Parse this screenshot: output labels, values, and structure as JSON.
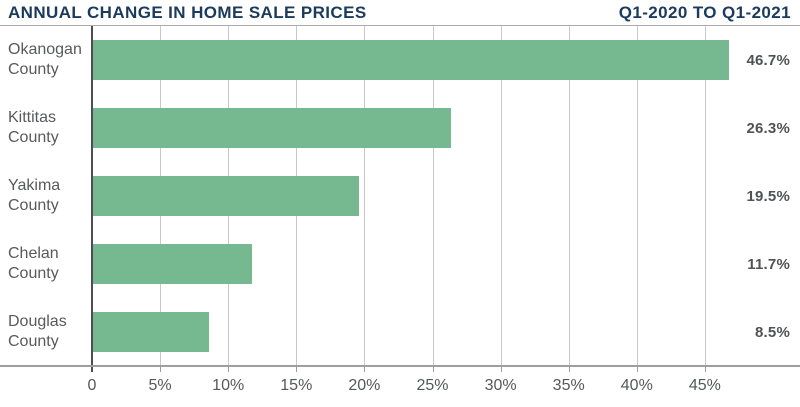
{
  "header": {
    "title": "ANNUAL CHANGE IN HOME SALE PRICES",
    "period": "Q1-2020 TO Q1-2021"
  },
  "colors": {
    "navy": "#1b3b5d",
    "bar_green": "#76b990",
    "label_gray": "#58595b",
    "value_gray": "#515254",
    "gridline": "#c9c9c9",
    "axis": "#9e9e9e",
    "zero_axis": "#4d4e50"
  },
  "chart_data": {
    "type": "bar",
    "orientation": "horizontal",
    "title": "ANNUAL CHANGE IN HOME SALE PRICES",
    "subtitle": "Q1-2020 TO Q1-2021",
    "categories": [
      "Okanogan County",
      "Kittitas County",
      "Yakima County",
      "Chelan County",
      "Douglas County"
    ],
    "values": [
      46.7,
      26.3,
      19.5,
      11.7,
      8.5
    ],
    "value_labels": [
      "46.7%",
      "26.3%",
      "19.5%",
      "11.7%",
      "8.5%"
    ],
    "x_tick_values": [
      0,
      5,
      10,
      15,
      20,
      25,
      30,
      35,
      40,
      45
    ],
    "x_tick_labels": [
      "0",
      "5%",
      "10%",
      "15%",
      "20%",
      "25%",
      "30%",
      "35%",
      "40%",
      "45%"
    ],
    "xlim": [
      0,
      52
    ],
    "grid": true,
    "legend": false,
    "bar_color": "#76b990",
    "xlabel": "",
    "ylabel": ""
  }
}
